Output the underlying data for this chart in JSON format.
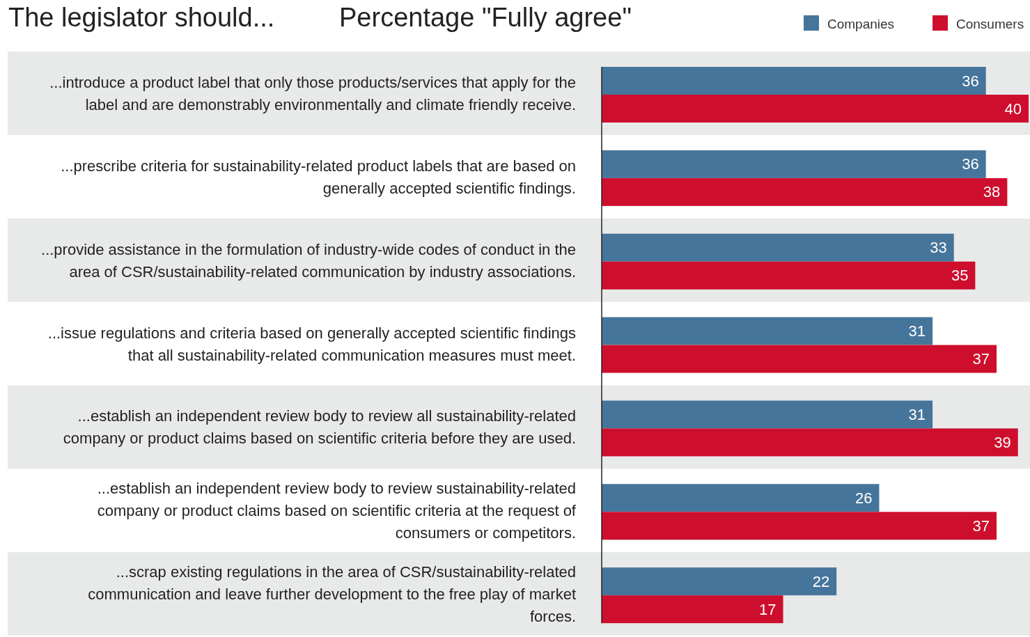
{
  "chart_data": {
    "type": "bar",
    "orientation": "horizontal",
    "title": "The legislator should...",
    "subtitle": "Percentage \"Fully agree\"",
    "categories": [
      "...introduce a product label that only those products/services that apply for the label and are demonstrably environmentally and climate friendly receive.",
      "...prescribe criteria for sustainability-related product labels that are based on generally accepted scientific findings.",
      "...provide assistance in the formulation of industry-wide codes of conduct in the area of CSR/sustainability-related communication by industry associations.",
      "...issue regulations and criteria based on generally accepted scientific findings that all sustainability-related communication measures must meet.",
      "...establish an independent review body to review all sustainability-related company or product claims based on scientific criteria before they are used.",
      "...establish an independent review body to review sustainability-related company or product claims based on scientific criteria at the request of consumers or competitors.",
      "...scrap existing regulations in the area of CSR/sustainability-related communication and leave further development to the free play of market forces."
    ],
    "series": [
      {
        "name": "Companies",
        "color": "#46759b",
        "values": [
          36,
          36,
          33,
          31,
          31,
          26,
          22
        ]
      },
      {
        "name": "Consumers",
        "color": "#ce0e2d",
        "values": [
          40,
          38,
          35,
          37,
          39,
          37,
          17
        ]
      }
    ],
    "data_labels": true,
    "legend": "top right"
  }
}
